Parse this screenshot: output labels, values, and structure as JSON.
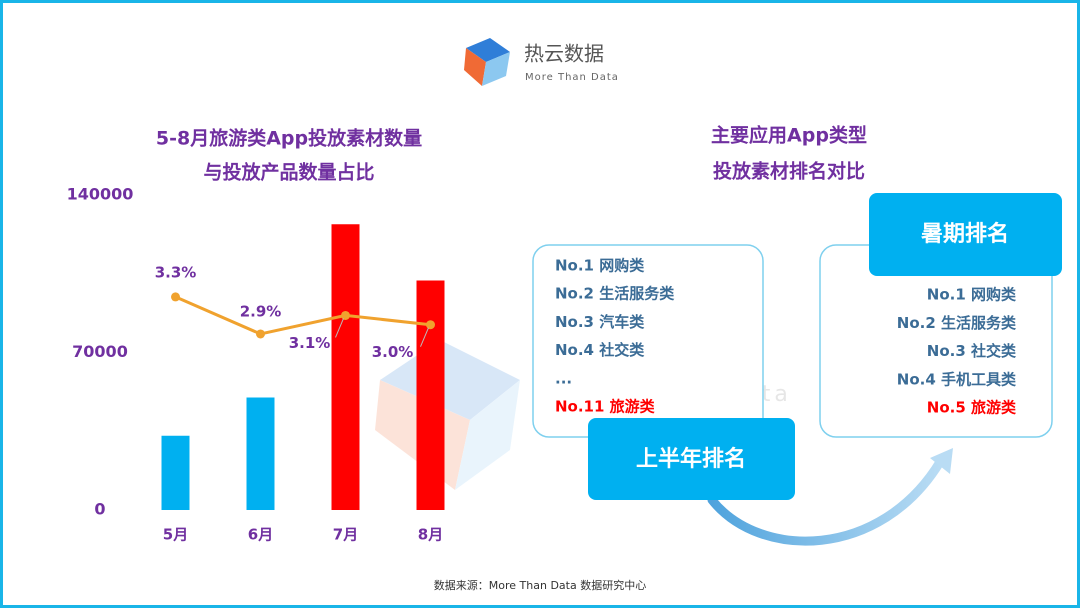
{
  "logo": {
    "name": "热云数据",
    "tagline": "More Than Data"
  },
  "chart_data": {
    "type": "bar",
    "title": [
      "5-8月旅游类App投放素材数量",
      "与投放产品数量占比"
    ],
    "categories": [
      "5月",
      "6月",
      "7月",
      "8月"
    ],
    "values": [
      33000,
      50000,
      127000,
      102000
    ],
    "colors": [
      "#00b0f0",
      "#00b0f0",
      "#ff0000",
      "#ff0000"
    ],
    "ylim": [
      0,
      140000
    ],
    "yticks": [
      0,
      70000,
      140000
    ],
    "line_series": {
      "color": "#f0a22e",
      "axis": "y2",
      "values": [
        3.3,
        2.9,
        3.1,
        3.0
      ],
      "value_labels": [
        "3.3%",
        "2.9%",
        "3.1%",
        "3.0%"
      ]
    },
    "y2lim": [
      1,
      4.4
    ]
  },
  "ranking": {
    "title": [
      "主要应用App类型",
      "投放素材排名对比"
    ],
    "first_half": {
      "label": "上半年排名",
      "items": [
        "No.1 网购类",
        "No.2 生活服务类",
        "No.3 汽车类",
        "No.4 社交类",
        "...",
        "No.11 旅游类"
      ]
    },
    "summer": {
      "label": "暑期排名",
      "items": [
        "No.1 网购类",
        "No.2 生活服务类",
        "No.3 社交类",
        "No.4 手机工具类",
        "No.5 旅游类"
      ]
    }
  },
  "footer": "数据来源：More Than Data 数据研究中心"
}
